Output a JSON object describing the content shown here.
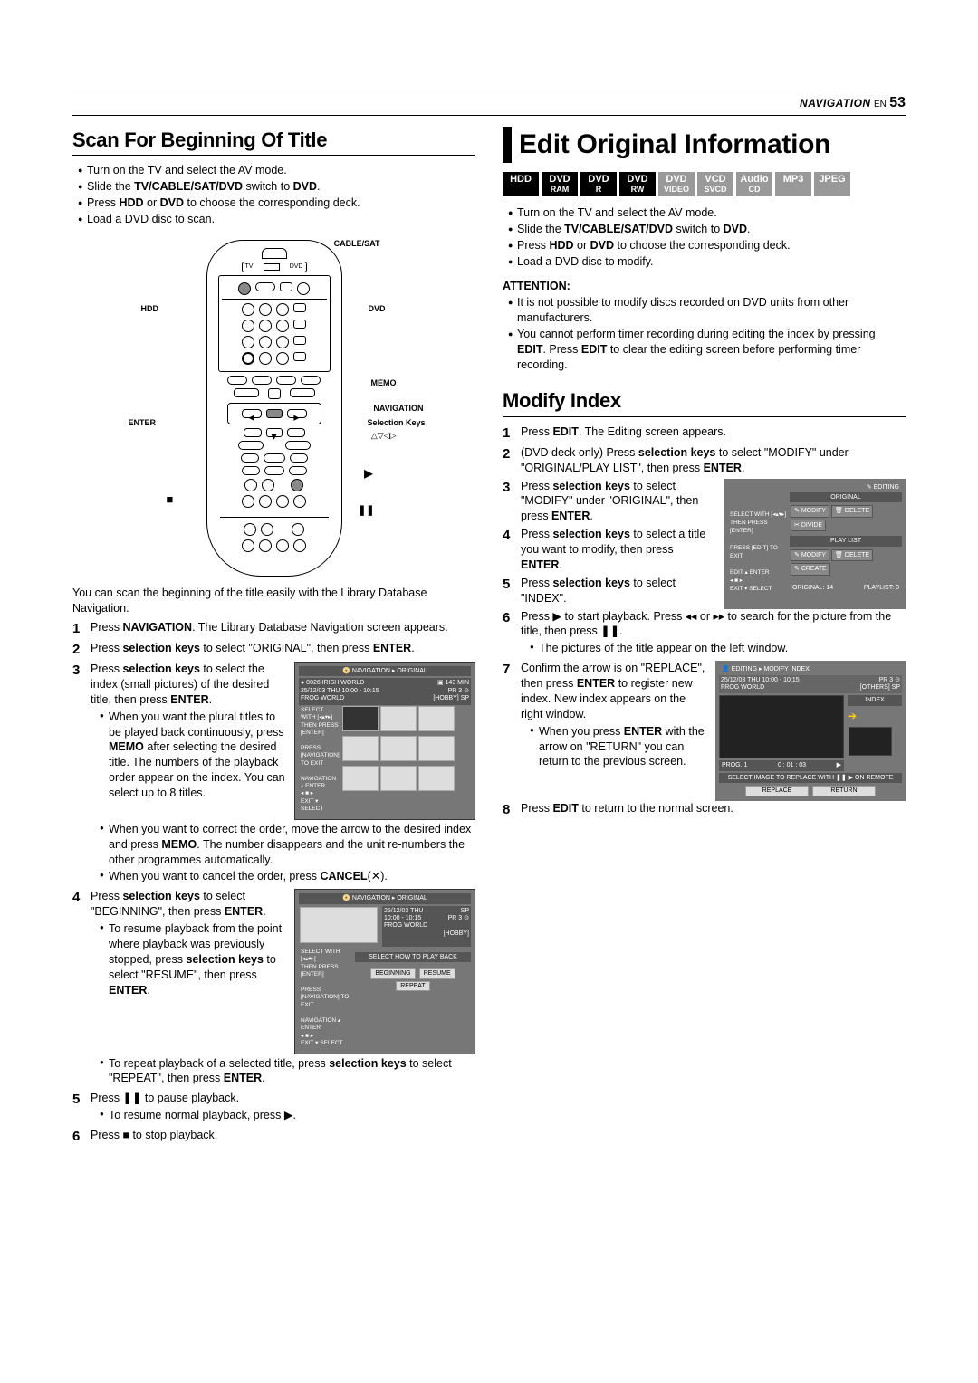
{
  "header": {
    "nav": "NAVIGATION",
    "lang": "EN",
    "page": "53"
  },
  "left": {
    "title": "Scan For Beginning Of Title",
    "intro": [
      "Turn on the TV and select the AV mode.",
      "Slide the <b>TV/CABLE/SAT/DVD</b> switch to <b>DVD</b>.",
      "Press <b>HDD</b> or <b>DVD</b> to choose the corresponding deck.",
      "Load a DVD disc to scan."
    ],
    "remote_labels": {
      "cable": "CABLE/SAT",
      "tv": "TV",
      "dvd": "DVD",
      "hdd": "HDD",
      "dvd2": "DVD",
      "memo": "MEMO",
      "enter": "ENTER",
      "navigation": "NAVIGATION",
      "selkeys": "Selection Keys",
      "arrows": "△▽◁▷"
    },
    "lead": "You can scan the beginning of the title easily with the Library Database Navigation.",
    "s1": "Press <b>NAVIGATION</b>. The Library Database Navigation screen appears.",
    "s2": "Press <b>selection keys</b> to select \"ORIGINAL\", then press <b>ENTER</b>.",
    "s3": "Press <b>selection keys</b> to select the index (small pictures) of the desired title, then press <b>ENTER</b>.",
    "s3b1": "When you want the plural titles to be played back continuously, press <b>MEMO</b> after selecting the desired title. The numbers of the playback order appear on the index. You can select up to 8 titles.",
    "s3b2": "When you want to correct the order, move the arrow to the desired index and press <b>MEMO</b>. The number disappears and the unit re-numbers the other programmes automatically.",
    "s3b3": "When you want to cancel the order, press <b>CANCEL</b>(✕).",
    "s4": "Press <b>selection keys</b> to select \"BEGINNING\", then press <b>ENTER</b>.",
    "s4b1": "To resume playback from the point where playback was previously stopped, press <b>selection keys</b> to select \"RESUME\", then press <b>ENTER</b>.",
    "s4b2": "To repeat playback of a selected title, press <b>selection keys</b> to select \"REPEAT\", then press <b>ENTER</b>.",
    "s5": "Press ❚❚ to pause playback.",
    "s5b1": "To resume normal playback, press ▶.",
    "s6": "Press ■ to stop playback.",
    "ss1": {
      "title": "NAVIGATION ▸ ORIGINAL",
      "info1": "● 0026   IRISH WORLD",
      "info1r": "▣ 143  MIN",
      "info2": "25/12/03 THU 10:00 - 10:15",
      "info2r": "PR   3  ⊙",
      "info3": "FROG WORLD",
      "info3r": "[HOBBY]   SP",
      "h1": "SELECT WITH [◂▴▾▸]",
      "h2": "THEN PRESS [ENTER]",
      "h3": "PRESS [NAVIGATION] TO EXIT",
      "h4": "NAVIGATION",
      "h5": "ENTER",
      "h6": "EXIT",
      "h7": "SELECT"
    },
    "ss2": {
      "title": "NAVIGATION ▸ ORIGINAL",
      "info1": "25/12/03 THU",
      "info1r": "SP",
      "info2": "10:00 - 10:15",
      "info2r": "PR   3 ⊙",
      "info3": "FROG WORLD",
      "info4": "[HOBBY]",
      "mid": "SELECT HOW TO PLAY BACK",
      "b1": "BEGINNING",
      "b2": "RESUME",
      "b3": "REPEAT"
    }
  },
  "right": {
    "title": "Edit Original Information",
    "badges": [
      {
        "t": "HDD",
        "c": "#000"
      },
      {
        "t": "DVD",
        "s": "RAM",
        "c": "#000"
      },
      {
        "t": "DVD",
        "s": "R",
        "c": "#000"
      },
      {
        "t": "DVD",
        "s": "RW",
        "c": "#000"
      },
      {
        "t": "DVD",
        "s": "VIDEO",
        "c": "#999"
      },
      {
        "t": "VCD",
        "s": "SVCD",
        "c": "#999"
      },
      {
        "t": "Audio",
        "s": "CD",
        "c": "#999"
      },
      {
        "t": "MP3",
        "c": "#999"
      },
      {
        "t": "JPEG",
        "c": "#999"
      }
    ],
    "intro": [
      "Turn on the TV and select the AV mode.",
      "Slide the <b>TV/CABLE/SAT/DVD</b> switch to <b>DVD</b>.",
      "Press <b>HDD</b> or <b>DVD</b> to choose the corresponding deck.",
      "Load a DVD disc to modify."
    ],
    "attn_label": "ATTENTION:",
    "attn": [
      "It is not possible to modify discs recorded on DVD units from other manufacturers.",
      "You cannot perform timer recording during editing the index by pressing <b>EDIT</b>. Press <b>EDIT</b> to clear the editing screen before performing timer recording."
    ],
    "sub": "Modify Index",
    "m1": "Press <b>EDIT</b>. The Editing screen appears.",
    "m2": "(DVD deck only) Press <b>selection keys</b> to select \"MODIFY\" under \"ORIGINAL/PLAY LIST\", then press <b>ENTER</b>.",
    "m3": "Press <b>selection keys</b> to select \"MODIFY\" under \"ORIGINAL\", then press <b>ENTER</b>.",
    "m4": "Press <b>selection keys</b> to select a title you want to modify, then press <b>ENTER</b>.",
    "m5": "Press <b>selection keys</b> to select \"INDEX\".",
    "m6": "Press ▶ to start playback. Press ◂◂ or ▸▸ to search for the picture from the title, then press ❚❚.",
    "m6b": "The pictures of the title appear on the left window.",
    "m7": "Confirm the arrow is on \"REPLACE\", then press <b>ENTER</b> to register new index. New index appears on the right window.",
    "m7b": "When you press <b>ENTER</b> with the arrow on \"RETURN\" you can return to the previous screen.",
    "m8": "Press <b>EDIT</b> to return to the normal screen.",
    "editshot": {
      "h": "EDITING",
      "orig": "ORIGINAL",
      "b_mod": "MODIFY",
      "b_del": "DELETE",
      "b_div": "DIVIDE",
      "pl": "PLAY LIST",
      "b_cre": "CREATE",
      "s1": "SELECT WITH [◂▴▾▸]",
      "s2": "THEN PRESS [ENTER]",
      "s3": "PRESS [EDIT] TO EXIT",
      "s4": "EDIT",
      "s5": "ENTER",
      "s6": "EXIT",
      "s7": "SELECT",
      "foot1": "ORIGINAL: 14",
      "foot2": "PLAYLIST: 0"
    },
    "idxshot": {
      "h": "EDITING ▸ MODIFY INDEX",
      "l1": "25/12/03 THU 10:00 - 10:15",
      "l1r": "PR   3  ⊙",
      "l2": "FROG WORLD",
      "l2r": "[OTHERS]  SP",
      "idx": "INDEX",
      "arrow": "➔",
      "p": "PROG. 1",
      "t": "0 : 01 : 03",
      "p2": "▶",
      "hint": "SELECT IMAGE TO REPLACE WITH ❚❚ ▶ ON REMOTE",
      "b1": "REPLACE",
      "b2": "RETURN"
    }
  }
}
